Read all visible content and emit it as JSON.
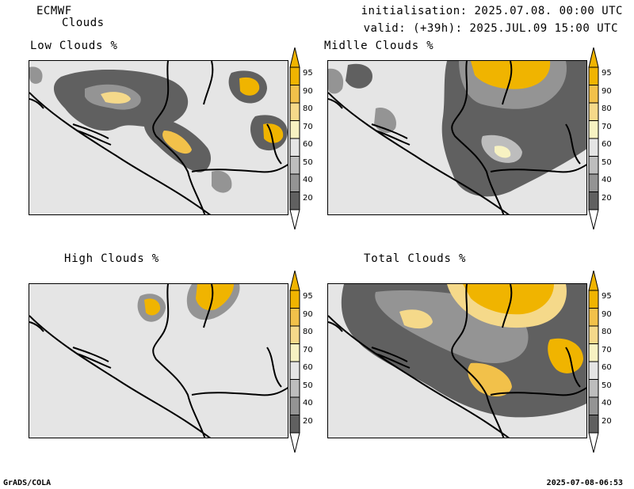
{
  "header": {
    "model": "ECMWF",
    "product": "Clouds",
    "init_line": "initialisation: 2025.07.08. 00:00 UTC",
    "valid_line": "valid: (+39h): 2025.JUL.09 15:00 UTC"
  },
  "panels": [
    {
      "title": "Low Clouds %"
    },
    {
      "title": "Midlle Clouds %"
    },
    {
      "title": "High Clouds %"
    },
    {
      "title": "Total Clouds %"
    }
  ],
  "colorbar": {
    "levels": [
      "95",
      "90",
      "80",
      "70",
      "60",
      "50",
      "40",
      "20"
    ],
    "colors": [
      "#f0b400",
      "#f2c14a",
      "#f5d98a",
      "#f7f2c2",
      "#e5e5e5",
      "#bdbdbd",
      "#949494",
      "#606060"
    ]
  },
  "footer": {
    "left": "GrADS/COLA",
    "right": "2025-07-08-06:53"
  }
}
